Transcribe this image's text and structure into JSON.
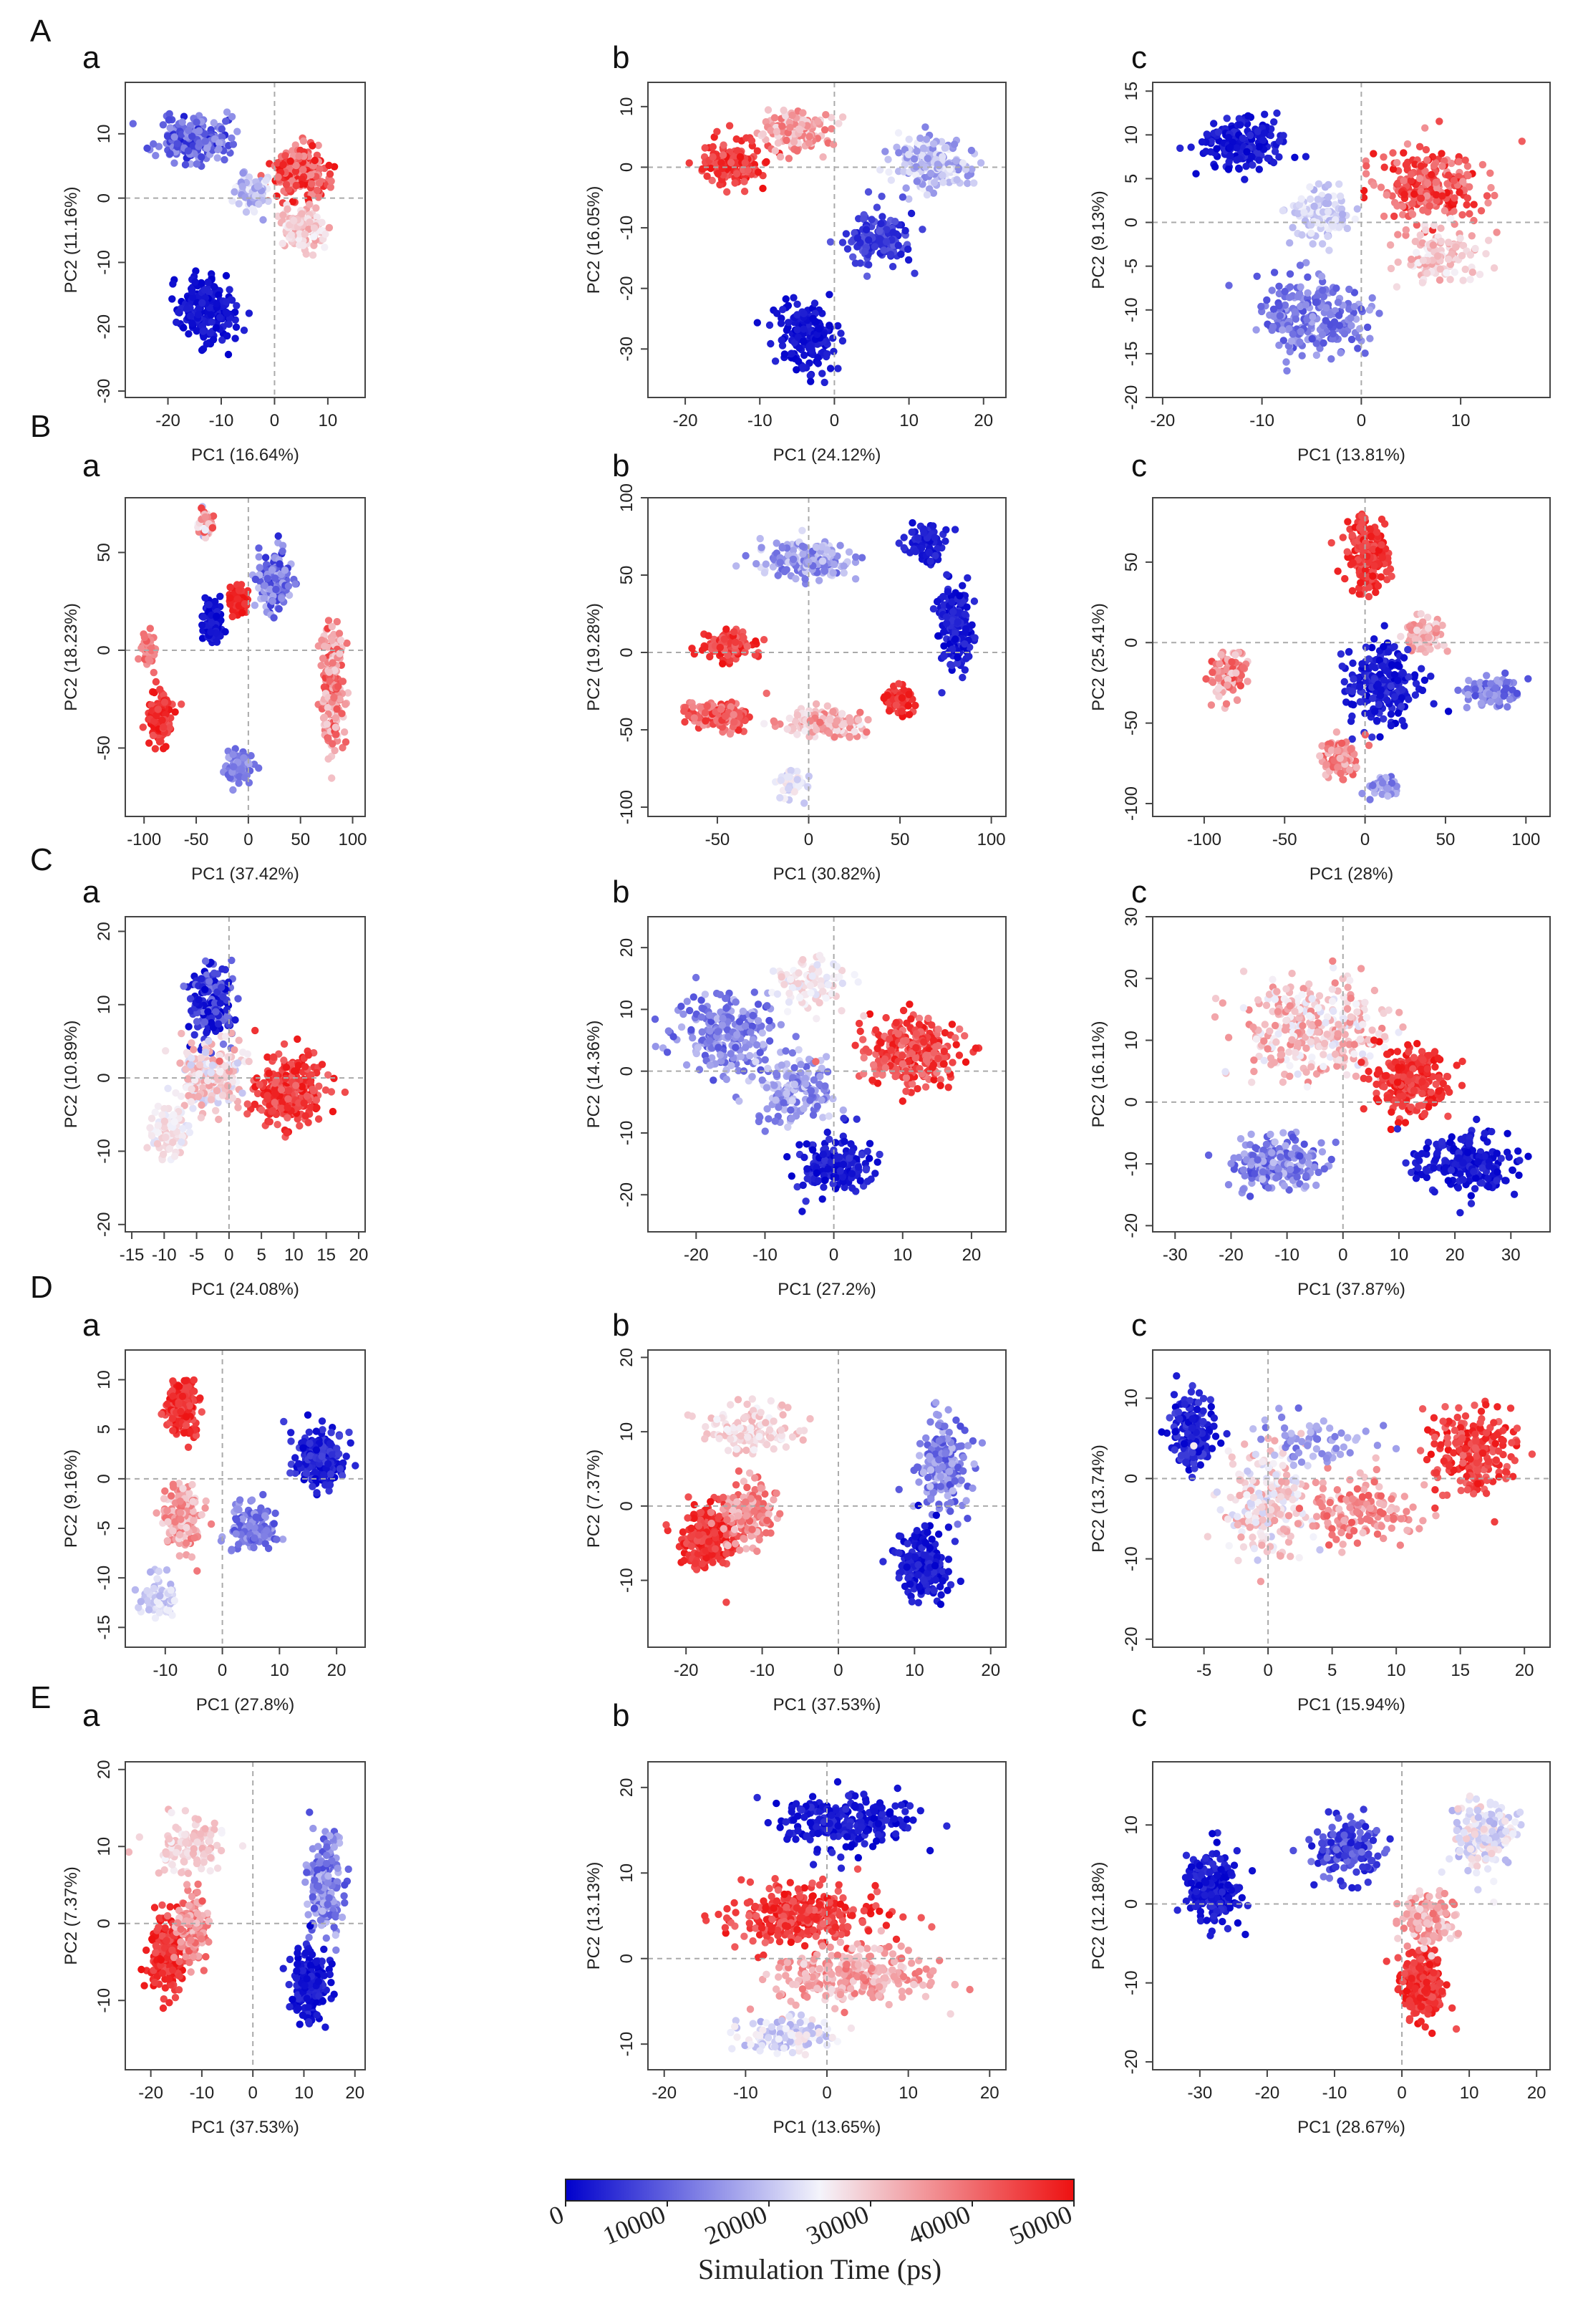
{
  "figure": {
    "colorbar": {
      "title": "Simulation Time (ps)",
      "ticks": [
        0,
        10000,
        20000,
        30000,
        40000,
        50000
      ],
      "colors": {
        "low": "#0000cc",
        "mid": "#f4f4fb",
        "high": "#ee1111"
      }
    }
  },
  "chart_data": [
    {
      "row": "A",
      "panel": "a",
      "type": "scatter",
      "xlabel": "PC1 (16.64%)",
      "ylabel": "PC2 (11.16%)",
      "xlim": [
        -28,
        17
      ],
      "ylim": [
        -31,
        18
      ],
      "xticks": [
        -20,
        -10,
        0,
        10
      ],
      "yticks": [
        -30,
        -20,
        -10,
        0,
        10
      ],
      "clusters": [
        {
          "cx": -15,
          "cy": 9,
          "sx": 6,
          "sy": 3,
          "t0": 0.05,
          "t1": 0.35,
          "n": 240
        },
        {
          "cx": -13,
          "cy": -17,
          "sx": 5,
          "sy": 4.5,
          "t0": 0.0,
          "t1": 0.08,
          "n": 200
        },
        {
          "cx": 5,
          "cy": 4,
          "sx": 5,
          "sy": 3.5,
          "t0": 0.7,
          "t1": 1.0,
          "n": 240
        },
        {
          "cx": 5,
          "cy": -5,
          "sx": 4,
          "sy": 3,
          "t0": 0.5,
          "t1": 0.7,
          "n": 120
        },
        {
          "cx": -4,
          "cy": 1,
          "sx": 3,
          "sy": 3,
          "t0": 0.3,
          "t1": 0.5,
          "n": 70
        }
      ]
    },
    {
      "row": "A",
      "panel": "b",
      "type": "scatter",
      "xlabel": "PC1 (24.12%)",
      "ylabel": "PC2 (16.05%)",
      "xlim": [
        -25,
        23
      ],
      "ylim": [
        -38,
        14
      ],
      "xticks": [
        -20,
        -10,
        0,
        10,
        20
      ],
      "yticks": [
        -30,
        -20,
        -10,
        0,
        10
      ],
      "clusters": [
        {
          "cx": -14,
          "cy": 1,
          "sx": 4,
          "sy": 3,
          "t0": 0.8,
          "t1": 1.0,
          "n": 170
        },
        {
          "cx": -5,
          "cy": 6,
          "sx": 4,
          "sy": 3,
          "t0": 0.55,
          "t1": 0.8,
          "n": 140
        },
        {
          "cx": 13,
          "cy": 1,
          "sx": 5,
          "sy": 4,
          "t0": 0.25,
          "t1": 0.5,
          "n": 200
        },
        {
          "cx": 6,
          "cy": -12,
          "sx": 4,
          "sy": 4,
          "t0": 0.05,
          "t1": 0.2,
          "n": 140
        },
        {
          "cx": -4,
          "cy": -28,
          "sx": 3.5,
          "sy": 5,
          "t0": 0.0,
          "t1": 0.08,
          "n": 170
        }
      ]
    },
    {
      "row": "A",
      "panel": "c",
      "type": "scatter",
      "xlabel": "PC1 (13.81%)",
      "ylabel": "PC2 (9.13%)",
      "xlim": [
        -21,
        19
      ],
      "ylim": [
        -20,
        16
      ],
      "xticks": [
        -20,
        -10,
        0,
        10
      ],
      "yticks": [
        -20,
        -15,
        -10,
        -5,
        0,
        5,
        10,
        15
      ],
      "clusters": [
        {
          "cx": -12,
          "cy": 9,
          "sx": 4,
          "sy": 3,
          "t0": 0.0,
          "t1": 0.1,
          "n": 170
        },
        {
          "cx": -4,
          "cy": 1,
          "sx": 3,
          "sy": 3,
          "t0": 0.35,
          "t1": 0.5,
          "n": 110
        },
        {
          "cx": -5,
          "cy": -11,
          "sx": 5,
          "sy": 4,
          "t0": 0.15,
          "t1": 0.35,
          "n": 230
        },
        {
          "cx": 7,
          "cy": 4,
          "sx": 5,
          "sy": 4,
          "t0": 0.7,
          "t1": 1.0,
          "n": 240
        },
        {
          "cx": 8,
          "cy": -4,
          "sx": 4,
          "sy": 3,
          "t0": 0.5,
          "t1": 0.7,
          "n": 120
        }
      ]
    },
    {
      "row": "B",
      "panel": "a",
      "type": "scatter",
      "xlabel": "PC1 (37.42%)",
      "ylabel": "PC2 (18.23%)",
      "xlim": [
        -118,
        112
      ],
      "ylim": [
        -85,
        78
      ],
      "xticks": [
        -100,
        -50,
        0,
        50,
        100
      ],
      "yticks": [
        -50,
        0,
        50
      ],
      "clusters": [
        {
          "cx": -85,
          "cy": -35,
          "sx": 10,
          "sy": 12,
          "t0": 0.85,
          "t1": 1.0,
          "n": 160
        },
        {
          "cx": -95,
          "cy": 0,
          "sx": 6,
          "sy": 8,
          "t0": 0.7,
          "t1": 0.85,
          "n": 60
        },
        {
          "cx": -35,
          "cy": 15,
          "sx": 8,
          "sy": 10,
          "t0": 0.0,
          "t1": 0.08,
          "n": 100
        },
        {
          "cx": -10,
          "cy": 25,
          "sx": 8,
          "sy": 8,
          "t0": 0.9,
          "t1": 1.0,
          "n": 60
        },
        {
          "cx": 25,
          "cy": 35,
          "sx": 14,
          "sy": 14,
          "t0": 0.08,
          "t1": 0.4,
          "n": 180
        },
        {
          "cx": -10,
          "cy": -60,
          "sx": 10,
          "sy": 7,
          "t0": 0.2,
          "t1": 0.35,
          "n": 80
        },
        {
          "cx": 80,
          "cy": -20,
          "sx": 10,
          "sy": 30,
          "t0": 0.55,
          "t1": 0.9,
          "n": 220
        },
        {
          "cx": -40,
          "cy": 65,
          "sx": 6,
          "sy": 6,
          "t0": 0.3,
          "t1": 0.9,
          "n": 50
        }
      ]
    },
    {
      "row": "B",
      "panel": "b",
      "type": "scatter",
      "xlabel": "PC1 (30.82%)",
      "ylabel": "PC2 (19.28%)",
      "xlim": [
        -88,
        108
      ],
      "ylim": [
        -106,
        100
      ],
      "xticks": [
        -50,
        0,
        50,
        100
      ],
      "yticks": [
        -100,
        -50,
        0,
        50,
        100
      ],
      "clusters": [
        {
          "cx": -45,
          "cy": 5,
          "sx": 13,
          "sy": 8,
          "t0": 0.8,
          "t1": 1.0,
          "n": 130
        },
        {
          "cx": -50,
          "cy": -40,
          "sx": 15,
          "sy": 8,
          "t0": 0.7,
          "t1": 0.95,
          "n": 150
        },
        {
          "cx": 10,
          "cy": -45,
          "sx": 20,
          "sy": 8,
          "t0": 0.5,
          "t1": 0.8,
          "n": 170
        },
        {
          "cx": 50,
          "cy": -30,
          "sx": 8,
          "sy": 8,
          "t0": 0.85,
          "t1": 1.0,
          "n": 70
        },
        {
          "cx": 80,
          "cy": 15,
          "sx": 8,
          "sy": 25,
          "t0": 0.0,
          "t1": 0.12,
          "n": 170
        },
        {
          "cx": 0,
          "cy": 60,
          "sx": 25,
          "sy": 12,
          "t0": 0.2,
          "t1": 0.45,
          "n": 160
        },
        {
          "cx": 65,
          "cy": 70,
          "sx": 10,
          "sy": 12,
          "t0": 0.02,
          "t1": 0.1,
          "n": 80
        },
        {
          "cx": -10,
          "cy": -85,
          "sx": 8,
          "sy": 8,
          "t0": 0.4,
          "t1": 0.55,
          "n": 40
        }
      ]
    },
    {
      "row": "B",
      "panel": "c",
      "type": "scatter",
      "xlabel": "PC1 (28%)",
      "ylabel": "PC2 (25.41%)",
      "xlim": [
        -132,
        115
      ],
      "ylim": [
        -108,
        90
      ],
      "xticks": [
        -100,
        -50,
        0,
        50,
        100
      ],
      "yticks": [
        -100,
        -50,
        0,
        50
      ],
      "clusters": [
        {
          "cx": 0,
          "cy": 55,
          "sx": 12,
          "sy": 20,
          "t0": 0.85,
          "t1": 1.0,
          "n": 180
        },
        {
          "cx": 35,
          "cy": 5,
          "sx": 12,
          "sy": 10,
          "t0": 0.55,
          "t1": 0.75,
          "n": 80
        },
        {
          "cx": 10,
          "cy": -25,
          "sx": 20,
          "sy": 25,
          "t0": 0.0,
          "t1": 0.12,
          "n": 200
        },
        {
          "cx": 80,
          "cy": -30,
          "sx": 15,
          "sy": 10,
          "t0": 0.15,
          "t1": 0.35,
          "n": 90
        },
        {
          "cx": -15,
          "cy": -70,
          "sx": 10,
          "sy": 12,
          "t0": 0.6,
          "t1": 0.85,
          "n": 100
        },
        {
          "cx": -85,
          "cy": -20,
          "sx": 12,
          "sy": 14,
          "t0": 0.55,
          "t1": 0.9,
          "n": 100
        },
        {
          "cx": 10,
          "cy": -90,
          "sx": 8,
          "sy": 7,
          "t0": 0.2,
          "t1": 0.4,
          "n": 40
        }
      ]
    },
    {
      "row": "C",
      "panel": "a",
      "type": "scatter",
      "xlabel": "PC1 (24.08%)",
      "ylabel": "PC2 (10.89%)",
      "xlim": [
        -16,
        21
      ],
      "ylim": [
        -21,
        22
      ],
      "xticks": [
        -15,
        -10,
        -5,
        0,
        5,
        10,
        15,
        20
      ],
      "yticks": [
        -20,
        -10,
        0,
        10,
        20
      ],
      "clusters": [
        {
          "cx": -3,
          "cy": 10,
          "sx": 3,
          "sy": 5,
          "t0": 0.0,
          "t1": 0.25,
          "n": 160
        },
        {
          "cx": -3,
          "cy": 0,
          "sx": 4,
          "sy": 4,
          "t0": 0.4,
          "t1": 0.7,
          "n": 240
        },
        {
          "cx": -9,
          "cy": -7,
          "sx": 3,
          "sy": 4,
          "t0": 0.45,
          "t1": 0.6,
          "n": 90
        },
        {
          "cx": 9,
          "cy": -2,
          "sx": 5,
          "sy": 4,
          "t0": 0.8,
          "t1": 1.0,
          "n": 330
        }
      ]
    },
    {
      "row": "C",
      "panel": "b",
      "type": "scatter",
      "xlabel": "PC1 (27.2%)",
      "ylabel": "PC2 (14.36%)",
      "xlim": [
        -27,
        25
      ],
      "ylim": [
        -26,
        25
      ],
      "xticks": [
        -20,
        -10,
        0,
        10,
        20
      ],
      "yticks": [
        -20,
        -10,
        0,
        10,
        20
      ],
      "clusters": [
        {
          "cx": -16,
          "cy": 6,
          "sx": 6,
          "sy": 6,
          "t0": 0.15,
          "t1": 0.4,
          "n": 230
        },
        {
          "cx": -6,
          "cy": -3,
          "sx": 5,
          "sy": 5,
          "t0": 0.2,
          "t1": 0.45,
          "n": 160
        },
        {
          "cx": 0,
          "cy": -15,
          "sx": 5,
          "sy": 4,
          "t0": 0.0,
          "t1": 0.12,
          "n": 170
        },
        {
          "cx": 11,
          "cy": 3,
          "sx": 6,
          "sy": 5,
          "t0": 0.75,
          "t1": 1.0,
          "n": 300
        },
        {
          "cx": -3,
          "cy": 14,
          "sx": 5,
          "sy": 4,
          "t0": 0.45,
          "t1": 0.6,
          "n": 90
        }
      ]
    },
    {
      "row": "C",
      "panel": "c",
      "type": "scatter",
      "xlabel": "PC1 (37.87%)",
      "ylabel": "PC2 (16.11%)",
      "xlim": [
        -34,
        37
      ],
      "ylim": [
        -21,
        30
      ],
      "xticks": [
        -30,
        -20,
        -10,
        0,
        10,
        20,
        30
      ],
      "yticks": [
        -20,
        -10,
        0,
        10,
        20,
        30
      ],
      "clusters": [
        {
          "cx": -5,
          "cy": 12,
          "sx": 12,
          "sy": 7,
          "t0": 0.45,
          "t1": 0.75,
          "n": 330
        },
        {
          "cx": -12,
          "cy": -10,
          "sx": 8,
          "sy": 4,
          "t0": 0.15,
          "t1": 0.4,
          "n": 200
        },
        {
          "cx": 12,
          "cy": 3,
          "sx": 6,
          "sy": 5,
          "t0": 0.85,
          "t1": 1.0,
          "n": 240
        },
        {
          "cx": 22,
          "cy": -10,
          "sx": 8,
          "sy": 4,
          "t0": 0.0,
          "t1": 0.1,
          "n": 200
        }
      ]
    },
    {
      "row": "D",
      "panel": "a",
      "type": "scatter",
      "xlabel": "PC1 (27.8%)",
      "ylabel": "PC2 (9.16%)",
      "xlim": [
        -17,
        25
      ],
      "ylim": [
        -17,
        13
      ],
      "xticks": [
        -10,
        0,
        10,
        20
      ],
      "yticks": [
        -15,
        -10,
        -5,
        0,
        5,
        10
      ],
      "clusters": [
        {
          "cx": -7,
          "cy": 7,
          "sx": 2.5,
          "sy": 2.5,
          "t0": 0.85,
          "t1": 1.0,
          "n": 200
        },
        {
          "cx": -7,
          "cy": -4,
          "sx": 3,
          "sy": 3,
          "t0": 0.55,
          "t1": 0.8,
          "n": 150
        },
        {
          "cx": -11,
          "cy": -12,
          "sx": 3,
          "sy": 2,
          "t0": 0.35,
          "t1": 0.5,
          "n": 70
        },
        {
          "cx": 5,
          "cy": -5,
          "sx": 4,
          "sy": 2,
          "t0": 0.15,
          "t1": 0.35,
          "n": 120
        },
        {
          "cx": 17,
          "cy": 2,
          "sx": 4,
          "sy": 2.5,
          "t0": 0.0,
          "t1": 0.15,
          "n": 220
        }
      ]
    },
    {
      "row": "D",
      "panel": "b",
      "type": "scatter",
      "xlabel": "PC1 (37.53%)",
      "ylabel": "PC2 (7.37%)",
      "xlim": [
        -25,
        22
      ],
      "ylim": [
        -19,
        21
      ],
      "xticks": [
        -20,
        -10,
        0,
        10,
        20
      ],
      "yticks": [
        -10,
        0,
        10,
        20
      ],
      "clusters": [
        {
          "cx": -17,
          "cy": -4,
          "sx": 3,
          "sy": 4,
          "t0": 0.85,
          "t1": 1.0,
          "n": 240
        },
        {
          "cx": -12,
          "cy": -1,
          "sx": 3,
          "sy": 4,
          "t0": 0.6,
          "t1": 0.85,
          "n": 150
        },
        {
          "cx": -12,
          "cy": 10,
          "sx": 6,
          "sy": 3,
          "t0": 0.5,
          "t1": 0.65,
          "n": 120
        },
        {
          "cx": 14,
          "cy": 5,
          "sx": 3,
          "sy": 6,
          "t0": 0.15,
          "t1": 0.4,
          "n": 200
        },
        {
          "cx": 11,
          "cy": -8,
          "sx": 3,
          "sy": 4,
          "t0": 0.0,
          "t1": 0.1,
          "n": 210
        }
      ]
    },
    {
      "row": "D",
      "panel": "c",
      "type": "scatter",
      "xlabel": "PC1 (15.94%)",
      "ylabel": "PC2 (13.74%)",
      "xlim": [
        -9,
        22
      ],
      "ylim": [
        -21,
        16
      ],
      "xticks": [
        -5,
        0,
        5,
        10,
        15,
        20
      ],
      "yticks": [
        -20,
        -10,
        0,
        10
      ],
      "clusters": [
        {
          "cx": -6,
          "cy": 6,
          "sx": 1.5,
          "sy": 4,
          "t0": 0.0,
          "t1": 0.15,
          "n": 180
        },
        {
          "cx": 0,
          "cy": -3,
          "sx": 3,
          "sy": 6,
          "t0": 0.4,
          "t1": 0.7,
          "n": 220
        },
        {
          "cx": 7,
          "cy": -4,
          "sx": 4,
          "sy": 4,
          "t0": 0.6,
          "t1": 0.85,
          "n": 150
        },
        {
          "cx": 16,
          "cy": 3,
          "sx": 3,
          "sy": 5,
          "t0": 0.8,
          "t1": 1.0,
          "n": 220
        },
        {
          "cx": 4,
          "cy": 5,
          "sx": 4,
          "sy": 3,
          "t0": 0.2,
          "t1": 0.4,
          "n": 60
        }
      ]
    },
    {
      "row": "E",
      "panel": "a",
      "type": "scatter",
      "xlabel": "PC1 (37.53%)",
      "ylabel": "PC2 (7.37%)",
      "xlim": [
        -25,
        22
      ],
      "ylim": [
        -19,
        21
      ],
      "xticks": [
        -20,
        -10,
        0,
        10,
        20
      ],
      "yticks": [
        -10,
        0,
        10,
        20
      ],
      "clusters": [
        {
          "cx": -17,
          "cy": -4,
          "sx": 3,
          "sy": 4,
          "t0": 0.85,
          "t1": 1.0,
          "n": 240
        },
        {
          "cx": -12,
          "cy": -1,
          "sx": 3,
          "sy": 4,
          "t0": 0.6,
          "t1": 0.85,
          "n": 150
        },
        {
          "cx": -12,
          "cy": 10,
          "sx": 6,
          "sy": 3,
          "t0": 0.5,
          "t1": 0.65,
          "n": 120
        },
        {
          "cx": 14,
          "cy": 5,
          "sx": 3,
          "sy": 6,
          "t0": 0.15,
          "t1": 0.4,
          "n": 200
        },
        {
          "cx": 11,
          "cy": -8,
          "sx": 3,
          "sy": 4,
          "t0": 0.0,
          "t1": 0.1,
          "n": 210
        }
      ]
    },
    {
      "row": "E",
      "panel": "b",
      "type": "scatter",
      "xlabel": "PC1 (13.65%)",
      "ylabel": "PC2 (13.13%)",
      "xlim": [
        -22,
        22
      ],
      "ylim": [
        -13,
        23
      ],
      "xticks": [
        -20,
        -10,
        0,
        10,
        20
      ],
      "yticks": [
        -10,
        0,
        10,
        20
      ],
      "clusters": [
        {
          "cx": 2,
          "cy": 16,
          "sx": 8,
          "sy": 3,
          "t0": 0.0,
          "t1": 0.1,
          "n": 220
        },
        {
          "cx": -3,
          "cy": 5,
          "sx": 8,
          "sy": 3,
          "t0": 0.8,
          "t1": 1.0,
          "n": 330
        },
        {
          "cx": 3,
          "cy": -2,
          "sx": 9,
          "sy": 3,
          "t0": 0.55,
          "t1": 0.8,
          "n": 280
        },
        {
          "cx": -5,
          "cy": -9,
          "sx": 6,
          "sy": 2,
          "t0": 0.35,
          "t1": 0.55,
          "n": 120
        }
      ]
    },
    {
      "row": "E",
      "panel": "c",
      "type": "scatter",
      "xlabel": "PC1 (28.67%)",
      "ylabel": "PC2 (12.18%)",
      "xlim": [
        -37,
        22
      ],
      "ylim": [
        -21,
        18
      ],
      "xticks": [
        -30,
        -20,
        -10,
        0,
        10,
        20
      ],
      "yticks": [
        -20,
        -10,
        0,
        10
      ],
      "clusters": [
        {
          "cx": -28,
          "cy": 2,
          "sx": 4,
          "sy": 4,
          "t0": 0.0,
          "t1": 0.1,
          "n": 200
        },
        {
          "cx": -8,
          "cy": 7,
          "sx": 5,
          "sy": 3,
          "t0": 0.05,
          "t1": 0.25,
          "n": 160
        },
        {
          "cx": 12,
          "cy": 9,
          "sx": 4,
          "sy": 4,
          "t0": 0.35,
          "t1": 0.6,
          "n": 180
        },
        {
          "cx": 3,
          "cy": -10,
          "sx": 3,
          "sy": 4,
          "t0": 0.85,
          "t1": 1.0,
          "n": 240
        },
        {
          "cx": 3,
          "cy": -2,
          "sx": 4,
          "sy": 3,
          "t0": 0.55,
          "t1": 0.8,
          "n": 120
        }
      ]
    }
  ]
}
